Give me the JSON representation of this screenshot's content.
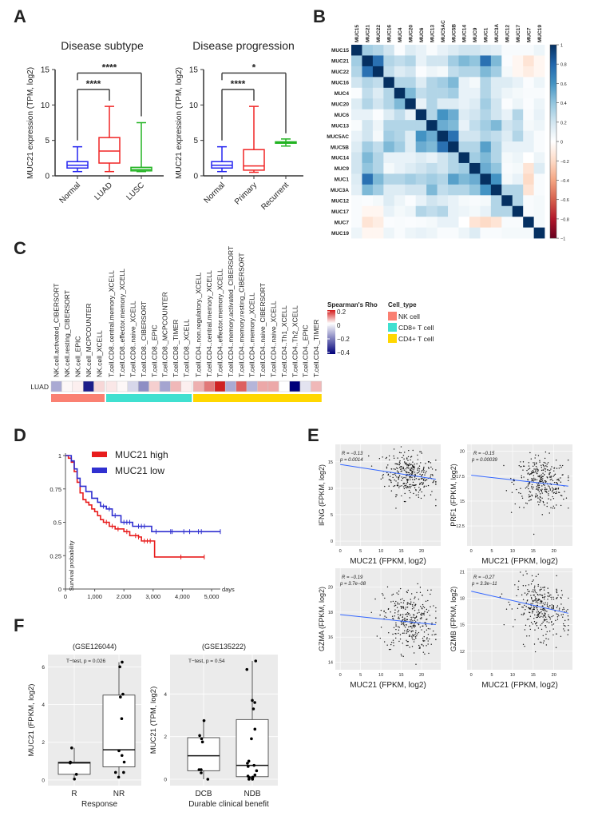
{
  "panel_labels": {
    "A": "A",
    "B": "B",
    "C": "C",
    "D": "D",
    "E": "E",
    "F": "F"
  },
  "chart_data": [
    {
      "id": "A1",
      "type": "box",
      "title": "Disease  subtype",
      "ylabel": "MUC21 expression (TPM, log2)",
      "ylim": [
        0,
        15
      ],
      "yticks": [
        "0",
        "5",
        "10",
        "15"
      ],
      "categories": [
        "Normal",
        "LUAD",
        "LUSC"
      ],
      "colors": [
        "#2424f0",
        "#f02424",
        "#22b322"
      ],
      "boxes": [
        {
          "min": 0.6,
          "q1": 1.1,
          "median": 1.5,
          "q3": 2.0,
          "max": 4.1
        },
        {
          "min": 0.6,
          "q1": 1.8,
          "median": 3.5,
          "q3": 5.4,
          "max": 9.8
        },
        {
          "min": 0.6,
          "q1": 0.7,
          "median": 0.9,
          "q3": 1.2,
          "max": 7.5
        }
      ],
      "comparisons": [
        {
          "from": 0,
          "to": 1,
          "label": "****",
          "y": 12.2,
          "left_end": 5.0,
          "right_end": 10.6
        },
        {
          "from": 0,
          "to": 2,
          "label": "****",
          "y": 14.5,
          "left_end": 13.5,
          "right_end": 8.4
        }
      ]
    },
    {
      "id": "A2",
      "type": "box",
      "title": "Disease progression",
      "ylabel": "MUC21 expression (TPM, log2)",
      "ylim": [
        0,
        15
      ],
      "yticks": [
        "0",
        "5",
        "10",
        "15"
      ],
      "categories": [
        "Normal",
        "Primary",
        "Recurrent"
      ],
      "colors": [
        "#2424f0",
        "#f02424",
        "#22b322"
      ],
      "boxes": [
        {
          "min": 0.6,
          "q1": 1.1,
          "median": 1.5,
          "q3": 2.0,
          "max": 4.1
        },
        {
          "min": 0.5,
          "q1": 0.8,
          "median": 1.4,
          "q3": 3.7,
          "max": 9.8
        },
        {
          "min": 4.2,
          "q1": 4.6,
          "median": 4.7,
          "q3": 4.8,
          "max": 5.2
        }
      ],
      "comparisons": [
        {
          "from": 0,
          "to": 1,
          "label": "****",
          "y": 12.2,
          "left_end": 5.0,
          "right_end": 10.6
        },
        {
          "from": 0,
          "to": 2,
          "label": "*",
          "y": 14.5,
          "left_end": 13.5,
          "right_end": 6.0
        }
      ]
    },
    {
      "id": "B",
      "type": "heatmap",
      "labels": [
        "MUC15",
        "MUC21",
        "MUC22",
        "MUC16",
        "MUC4",
        "MUC20",
        "MUC6",
        "MUC13",
        "MUC5AC",
        "MUC5B",
        "MUC14",
        "MUC9",
        "MUC1",
        "MUC3A",
        "MUC12",
        "MUC17",
        "MUC7",
        "MUC19"
      ],
      "label_color": "#ff2a2a",
      "values": [
        [
          1,
          0.35,
          0.3,
          0.2,
          0.02,
          0.15,
          0.1,
          0.03,
          0.1,
          0.15,
          0.2,
          0.2,
          0.15,
          0.12,
          0.03,
          0.03,
          0.03,
          0.08
        ],
        [
          0.35,
          1,
          0.75,
          0.3,
          0.25,
          0.3,
          0.1,
          0.2,
          0.2,
          0.35,
          0.45,
          0.4,
          0.75,
          0.45,
          0.02,
          -0.05,
          -0.15,
          -0.05
        ],
        [
          0.3,
          0.75,
          1,
          0.25,
          0.15,
          0.2,
          0.02,
          0.08,
          0.05,
          0.25,
          0.3,
          0.3,
          0.45,
          0.35,
          0.05,
          -0.05,
          -0.1,
          -0.05
        ],
        [
          0.2,
          0.3,
          0.25,
          1,
          0.3,
          0.3,
          0.15,
          0.3,
          0.35,
          0.45,
          0.1,
          0.05,
          0.3,
          0.15,
          0.15,
          0.1,
          0.02,
          0.08
        ],
        [
          0.02,
          0.25,
          0.15,
          0.3,
          1,
          0.45,
          0.25,
          0.3,
          0.3,
          0.35,
          0.1,
          0.1,
          0.3,
          0.15,
          0.08,
          0.05,
          0.03,
          0.03
        ],
        [
          0.15,
          0.3,
          0.2,
          0.3,
          0.45,
          1,
          0.1,
          0.3,
          0.15,
          0.15,
          0.1,
          0.15,
          0.35,
          0.2,
          0.02,
          0.08,
          0.02,
          0.08
        ],
        [
          0.1,
          0.1,
          0.02,
          0.15,
          0.25,
          0.1,
          1,
          0.3,
          0.6,
          0.5,
          0.15,
          0.2,
          0.3,
          0.2,
          0.1,
          0.3,
          0.03,
          0.1
        ],
        [
          0.03,
          0.2,
          0.08,
          0.3,
          0.3,
          0.3,
          0.3,
          1,
          0.5,
          0.45,
          0.1,
          0.25,
          0.35,
          0.45,
          0.2,
          0.25,
          0.05,
          0.08
        ],
        [
          0.1,
          0.2,
          0.05,
          0.35,
          0.3,
          0.15,
          0.6,
          0.5,
          1,
          0.75,
          0.2,
          0.2,
          0.3,
          0.25,
          0.15,
          0.3,
          0.1,
          0.03
        ],
        [
          0.15,
          0.35,
          0.25,
          0.45,
          0.35,
          0.15,
          0.5,
          0.45,
          0.75,
          1,
          0.3,
          0.3,
          0.55,
          0.3,
          0.1,
          0.1,
          0.1,
          0.03
        ],
        [
          0.2,
          0.45,
          0.3,
          0.1,
          0.1,
          0.1,
          0.15,
          0.1,
          0.2,
          0.3,
          1,
          0.35,
          0.45,
          0.3,
          0.05,
          0.08,
          0.0,
          0.08
        ],
        [
          0.2,
          0.4,
          0.3,
          0.05,
          0.1,
          0.15,
          0.2,
          0.25,
          0.2,
          0.3,
          0.35,
          1,
          0.5,
          0.4,
          0.03,
          0.05,
          -0.15,
          0.15
        ],
        [
          0.15,
          0.75,
          0.45,
          0.3,
          0.3,
          0.35,
          0.3,
          0.35,
          0.3,
          0.55,
          0.45,
          0.5,
          1,
          0.6,
          0.05,
          0.1,
          -0.2,
          0.03
        ],
        [
          0.12,
          0.45,
          0.35,
          0.15,
          0.15,
          0.2,
          0.2,
          0.45,
          0.25,
          0.3,
          0.3,
          0.4,
          0.6,
          1,
          0.3,
          0.3,
          -0.15,
          0.03
        ],
        [
          0.03,
          0.02,
          0.05,
          0.15,
          0.08,
          0.02,
          0.1,
          0.2,
          0.15,
          0.1,
          0.05,
          0.03,
          0.05,
          0.3,
          1,
          0.3,
          0.03,
          0.05
        ],
        [
          0.03,
          -0.05,
          -0.05,
          0.1,
          0.05,
          0.08,
          0.3,
          0.25,
          0.3,
          0.1,
          0.08,
          0.05,
          0.1,
          0.3,
          0.3,
          1,
          0.03,
          0.05
        ],
        [
          0.03,
          -0.15,
          -0.1,
          0.02,
          0.03,
          0.02,
          0.03,
          0.05,
          0.1,
          0.1,
          0.0,
          -0.15,
          -0.2,
          -0.15,
          0.03,
          0.03,
          1,
          0.05
        ],
        [
          0.08,
          -0.05,
          -0.05,
          0.08,
          0.03,
          0.08,
          0.1,
          0.08,
          0.03,
          0.03,
          0.08,
          0.15,
          0.03,
          0.03,
          0.05,
          0.05,
          0.05,
          1
        ]
      ],
      "colorbar_ticks": [
        "1",
        "0.8",
        "0.6",
        "0.4",
        "0.2",
        "0",
        "−0.2",
        "−0.4",
        "−0.6",
        "−0.8",
        "−1"
      ]
    },
    {
      "id": "C",
      "type": "heatmap",
      "row_label": "LUAD",
      "columns": [
        "NK.cell.activated_CIBERSORT",
        "NK.cell.resting_CIBERSORT",
        "NK.cell_EPIC",
        "NK.cell_MCPCOUNTER",
        "NK.cell_XCELL",
        "T.cell.CD8..central.memory_XCELL",
        "T.cell.CD8..effector.memory_XCELL",
        "T.cell.CD8..naive_XCELL",
        "T.cell.CD8._CIBERSORT",
        "T.cell.CD8._EPIC",
        "T.cell.CD8._MCPCOUNTER",
        "T.cell.CD8._TIMER",
        "T.cell.CD8._XCELL",
        "T.cell.CD4..non.regulatory._XCELL",
        "T.cell.CD4..central.memory_XCELL",
        "T.cell.CD4..effector.memory_XCELL",
        "T.cell.CD4..memory.activated_CIBERSORT",
        "T.cell.CD4..memory.resting_CIBERSORT",
        "T.cell.CD4..memory_XCELL",
        "T.cell.CD4..naive_CIBERSORT",
        "T.cell.CD4..naive_XCELL",
        "T.cell.CD4..Th1_XCELL",
        "T.cell.CD4..Th2_XCELL",
        "T.cell.CD4._EPIC",
        "T.cell.CD4._TIMER"
      ],
      "groups": [
        {
          "name": "NK cell",
          "count": 5,
          "color": "#fa8072"
        },
        {
          "name": "CD8+ T cell",
          "count": 8,
          "color": "#40e0d0"
        },
        {
          "name": "CD4+ T cell",
          "count": 12,
          "color": "#ffd700"
        }
      ],
      "values": [
        -0.15,
        0.01,
        0.02,
        -0.4,
        0.05,
        0.03,
        0.01,
        -0.07,
        -0.2,
        0.06,
        -0.16,
        0.09,
        0.02,
        0.1,
        0.17,
        0.28,
        -0.15,
        0.2,
        -0.13,
        0.11,
        0.11,
        0.0,
        -0.45,
        -0.05,
        0.09
      ],
      "legend_title": "Spearman's Rho",
      "legend_ticks": [
        {
          "v": 0.2,
          "t": "0.2"
        },
        {
          "v": 0,
          "t": "0"
        },
        {
          "v": -0.2,
          "t": "−0.2"
        },
        {
          "v": -0.4,
          "t": "−0.4"
        }
      ],
      "group_legend_title": "Cell_type"
    },
    {
      "id": "D",
      "type": "line",
      "subtype": "kaplan-meier",
      "ylabel": "Survival probability",
      "xlabel": "days",
      "xlim": [
        0,
        5300
      ],
      "ylim": [
        0,
        1
      ],
      "xticks": [
        {
          "v": 0,
          "t": "0"
        },
        {
          "v": 1000,
          "t": "1,000"
        },
        {
          "v": 2000,
          "t": "2,000"
        },
        {
          "v": 3000,
          "t": "3,000"
        },
        {
          "v": 4000,
          "t": "4,000"
        },
        {
          "v": 5000,
          "t": "5,000"
        }
      ],
      "yticks": [
        {
          "v": 0,
          "t": "0"
        },
        {
          "v": 0.25,
          "t": "0.25"
        },
        {
          "v": 0.5,
          "t": "0.5"
        },
        {
          "v": 0.75,
          "t": "0.75"
        },
        {
          "v": 1,
          "t": "1"
        }
      ],
      "series": [
        {
          "name": "MUC21 high",
          "color": "#e81c1c",
          "x": [
            0,
            100,
            200,
            300,
            400,
            500,
            600,
            700,
            800,
            900,
            1000,
            1100,
            1200,
            1300,
            1500,
            1700,
            2000,
            2200,
            2500,
            2600,
            3050,
            3050,
            4750
          ],
          "y": [
            1,
            0.98,
            0.95,
            0.88,
            0.8,
            0.72,
            0.67,
            0.65,
            0.63,
            0.6,
            0.58,
            0.55,
            0.52,
            0.5,
            0.47,
            0.45,
            0.43,
            0.4,
            0.39,
            0.36,
            0.36,
            0.24,
            0.24
          ],
          "censor": [
            1400,
            1600,
            1800,
            2100,
            2400,
            2500,
            2700,
            2800,
            2900,
            3950,
            4750
          ]
        },
        {
          "name": "MUC21 low",
          "color": "#3030d0",
          "x": [
            0,
            200,
            300,
            400,
            500,
            700,
            900,
            1100,
            1200,
            1400,
            1600,
            1900,
            2300,
            2950,
            2950,
            5300
          ],
          "y": [
            1,
            0.96,
            0.9,
            0.83,
            0.77,
            0.73,
            0.68,
            0.65,
            0.62,
            0.6,
            0.55,
            0.5,
            0.47,
            0.47,
            0.43,
            0.43
          ],
          "censor": [
            1300,
            1500,
            1700,
            2000,
            2100,
            2200,
            2500,
            2600,
            2700,
            3100,
            3600,
            3650,
            4050,
            4250,
            4550,
            4650,
            5300
          ]
        }
      ]
    },
    {
      "id": "E",
      "type": "scatter",
      "xlabel": "MUC21 (FPKM, log2)",
      "panels": [
        {
          "ylabel": "IFNG (FPKM, log2)",
          "R": "R = −0.13",
          "p": "p = 0.0014",
          "xlim": [
            -1.2,
            24.7
          ],
          "ylim": [
            -0.9,
            18.3
          ],
          "xticks": [
            0,
            5,
            10,
            15,
            20
          ],
          "yticks": [
            0,
            5,
            10,
            15
          ],
          "line": [
            [
              0,
              14.5
            ],
            [
              23.5,
              11.7
            ]
          ],
          "cloud": {
            "n": 320,
            "x_mean": 17,
            "x_sd": 3.2,
            "y_mean": 12.6,
            "y_sd": 2.0,
            "slope": -0.12
          }
        },
        {
          "ylabel": "PRF1 (FPKM, log2)",
          "R": "R = −0.15",
          "p": "p = 0.00039",
          "xlim": [
            -1,
            24.5
          ],
          "ylim": [
            10.5,
            20.7
          ],
          "xticks": [
            0,
            5,
            10,
            15,
            20
          ],
          "yticks": [
            12.5,
            15.0,
            17.5,
            20.0
          ],
          "line": [
            [
              0,
              17.6
            ],
            [
              23.5,
              16.5
            ]
          ],
          "cloud": {
            "n": 320,
            "x_mean": 17,
            "x_sd": 3.2,
            "y_mean": 16.8,
            "y_sd": 1.3,
            "slope": -0.05
          }
        },
        {
          "ylabel": "GZMA (FPKM, log2)",
          "R": "R = −0.19",
          "p": "p = 3.7e−08",
          "xlim": [
            -1.2,
            24.7
          ],
          "ylim": [
            13.4,
            21.5
          ],
          "xticks": [
            0,
            5,
            10,
            15,
            20
          ],
          "yticks": [
            14,
            16,
            18,
            20
          ],
          "line": [
            [
              0,
              17.8
            ],
            [
              23.5,
              17.0
            ]
          ],
          "cloud": {
            "n": 320,
            "x_mean": 17,
            "x_sd": 3.2,
            "y_mean": 17.3,
            "y_sd": 1.3,
            "slope": -0.04
          }
        },
        {
          "ylabel": "GZMB (FPKM, log2)",
          "R": "R = −0.27",
          "p": "p = 3.3e−11",
          "xlim": [
            -1,
            24.5
          ],
          "ylim": [
            9.9,
            21.4
          ],
          "xticks": [
            0,
            5,
            10,
            15,
            20
          ],
          "yticks": [
            12,
            15,
            18,
            21
          ],
          "line": [
            [
              0,
              18.8
            ],
            [
              23.5,
              16.3
            ]
          ],
          "cloud": {
            "n": 320,
            "x_mean": 17,
            "x_sd": 3.2,
            "y_mean": 16.8,
            "y_sd": 1.6,
            "slope": -0.11
          }
        }
      ]
    },
    {
      "id": "F",
      "type": "box",
      "panels": [
        {
          "title": "(GSE126044)",
          "test": "T−test, p = 0.026",
          "ylabel": "MUC21 (FPKM, log2)",
          "xlabel": "Response",
          "ylim": [
            -0.3,
            6.65
          ],
          "yticks": [
            0,
            2,
            4,
            6
          ],
          "categories": [
            "R",
            "NR"
          ],
          "boxes": [
            {
              "min": 0.05,
              "q1": 0.3,
              "median": 0.9,
              "q3": 0.95,
              "max": 1.7
            },
            {
              "min": 0.15,
              "q1": 0.7,
              "median": 1.6,
              "q3": 4.5,
              "max": 6.25
            }
          ],
          "points": [
            [
              1.7,
              0.95,
              0.9,
              0.3,
              0.05
            ],
            [
              6.25,
              6.0,
              4.55,
              4.4,
              3.25,
              1.55,
              1.3,
              0.95,
              0.4,
              0.4,
              0.15
            ]
          ]
        },
        {
          "title": "(GSE135222)",
          "test": "T−test, p = 0.54",
          "ylabel": "MUC21 (TPM, log2)",
          "xlabel": "Durable clinical benefit",
          "ylim": [
            -0.3,
            5.85
          ],
          "yticks": [
            0,
            2,
            4
          ],
          "categories": [
            "DCB",
            "NDB"
          ],
          "boxes": [
            {
              "min": 0,
              "q1": 0.4,
              "median": 1.1,
              "q3": 1.95,
              "max": 2.75
            },
            {
              "min": 0,
              "q1": 0.12,
              "median": 0.65,
              "q3": 2.8,
              "max": 5.55
            }
          ],
          "points": [
            [
              2.75,
              2.05,
              1.9,
              1.75,
              0.45,
              0.45,
              0.3,
              0.0
            ],
            [
              5.55,
              5.15,
              3.7,
              3.6,
              3.3,
              2.35,
              1.9,
              0.85,
              0.75,
              0.65,
              0.6,
              0.4,
              0.2,
              0.15,
              0.1,
              0.08,
              0.05,
              0.0,
              0.0
            ]
          ]
        }
      ]
    }
  ]
}
